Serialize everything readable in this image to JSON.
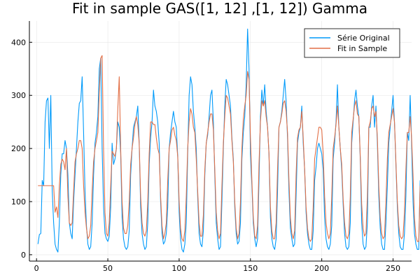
{
  "chart_data": {
    "type": "line",
    "title": "Fit in sample GAS([1, 12] ,[1, 12]) Gamma",
    "xlabel": "",
    "ylabel": "",
    "xlim": [
      -5,
      263
    ],
    "ylim": [
      -12,
      440
    ],
    "x_ticks": [
      0,
      50,
      100,
      150,
      200,
      250
    ],
    "y_ticks": [
      0,
      100,
      200,
      300,
      400
    ],
    "grid": true,
    "legend_position": "top-right",
    "series": [
      {
        "name": "Série Original",
        "color": "#009AFA",
        "values": [
          20,
          38,
          40,
          140,
          130,
          250,
          290,
          295,
          200,
          300,
          120,
          60,
          20,
          10,
          5,
          60,
          150,
          190,
          190,
          215,
          200,
          150,
          60,
          40,
          30,
          100,
          150,
          200,
          250,
          285,
          290,
          335,
          230,
          120,
          55,
          20,
          10,
          15,
          60,
          150,
          210,
          230,
          260,
          350,
          370,
          200,
          90,
          40,
          30,
          25,
          35,
          90,
          210,
          170,
          180,
          200,
          250,
          240,
          190,
          70,
          30,
          15,
          10,
          15,
          45,
          150,
          200,
          240,
          250,
          260,
          280,
          210,
          90,
          40,
          20,
          10,
          15,
          60,
          170,
          220,
          250,
          310,
          280,
          270,
          250,
          210,
          100,
          40,
          20,
          25,
          40,
          90,
          200,
          230,
          250,
          270,
          250,
          240,
          185,
          80,
          30,
          10,
          5,
          20,
          60,
          190,
          300,
          335,
          320,
          270,
          240,
          200,
          110,
          40,
          20,
          15,
          45,
          150,
          210,
          225,
          260,
          300,
          310,
          250,
          150,
          60,
          30,
          10,
          15,
          100,
          200,
          280,
          330,
          320,
          300,
          280,
          220,
          180,
          90,
          40,
          20,
          25,
          60,
          180,
          230,
          260,
          320,
          425,
          350,
          190,
          130,
          60,
          30,
          15,
          30,
          140,
          260,
          310,
          280,
          320,
          270,
          240,
          190,
          70,
          30,
          15,
          10,
          30,
          120,
          240,
          250,
          270,
          300,
          330,
          290,
          220,
          120,
          50,
          30,
          15,
          20,
          110,
          210,
          230,
          240,
          280,
          210,
          160,
          80,
          40,
          20,
          10,
          10,
          45,
          140,
          165,
          200,
          210,
          200,
          190,
          160,
          70,
          30,
          15,
          10,
          20,
          55,
          180,
          210,
          250,
          320,
          240,
          200,
          160,
          95,
          40,
          15,
          10,
          15,
          60,
          210,
          250,
          290,
          310,
          280,
          260,
          180,
          60,
          20,
          10,
          15,
          60,
          240,
          240,
          280,
          300,
          240,
          280,
          210,
          110,
          50,
          20,
          10,
          10,
          60,
          130,
          210,
          240,
          270,
          300,
          250,
          170,
          90,
          40,
          15,
          10,
          10,
          40,
          110,
          230,
          215,
          300,
          210,
          100,
          40,
          20,
          10,
          10,
          140
        ]
      },
      {
        "name": "Fit in Sample",
        "color": "#E26F46",
        "values": [
          130,
          130,
          130,
          130,
          130,
          130,
          130,
          130,
          130,
          130,
          130,
          130,
          80,
          90,
          70,
          130,
          170,
          180,
          175,
          160,
          200,
          110,
          60,
          55,
          60,
          120,
          175,
          190,
          200,
          215,
          215,
          200,
          130,
          80,
          50,
          30,
          35,
          55,
          120,
          175,
          200,
          215,
          230,
          305,
          370,
          375,
          200,
          80,
          40,
          35,
          60,
          130,
          195,
          190,
          185,
          200,
          275,
          335,
          200,
          100,
          50,
          40,
          40,
          55,
          100,
          170,
          200,
          220,
          245,
          260,
          245,
          210,
          110,
          60,
          40,
          35,
          45,
          100,
          190,
          250,
          250,
          245,
          245,
          220,
          200,
          190,
          110,
          55,
          30,
          40,
          60,
          140,
          200,
          215,
          235,
          240,
          225,
          215,
          185,
          100,
          50,
          30,
          25,
          45,
          110,
          200,
          250,
          275,
          265,
          240,
          230,
          180,
          120,
          60,
          35,
          35,
          75,
          160,
          210,
          230,
          250,
          265,
          265,
          235,
          160,
          80,
          45,
          30,
          40,
          130,
          210,
          260,
          300,
          295,
          280,
          265,
          215,
          175,
          100,
          50,
          30,
          40,
          100,
          200,
          255,
          280,
          300,
          345,
          330,
          220,
          140,
          70,
          35,
          30,
          55,
          170,
          250,
          290,
          280,
          290,
          260,
          240,
          190,
          90,
          45,
          30,
          30,
          60,
          160,
          240,
          250,
          265,
          285,
          290,
          270,
          230,
          140,
          70,
          40,
          30,
          45,
          150,
          220,
          235,
          240,
          270,
          220,
          160,
          90,
          50,
          30,
          25,
          30,
          90,
          180,
          200,
          220,
          240,
          240,
          235,
          190,
          110,
          60,
          40,
          30,
          40,
          110,
          200,
          220,
          245,
          280,
          240,
          200,
          170,
          105,
          60,
          35,
          30,
          40,
          110,
          230,
          255,
          280,
          290,
          265,
          260,
          185,
          95,
          50,
          35,
          40,
          110,
          240,
          250,
          275,
          280,
          260,
          270,
          220,
          130,
          70,
          40,
          30,
          35,
          100,
          180,
          230,
          245,
          260,
          275,
          250,
          175,
          100,
          55,
          35,
          30,
          35,
          80,
          160,
          230,
          230,
          260,
          220,
          150,
          70,
          35,
          25,
          25,
          130
        ]
      }
    ]
  }
}
